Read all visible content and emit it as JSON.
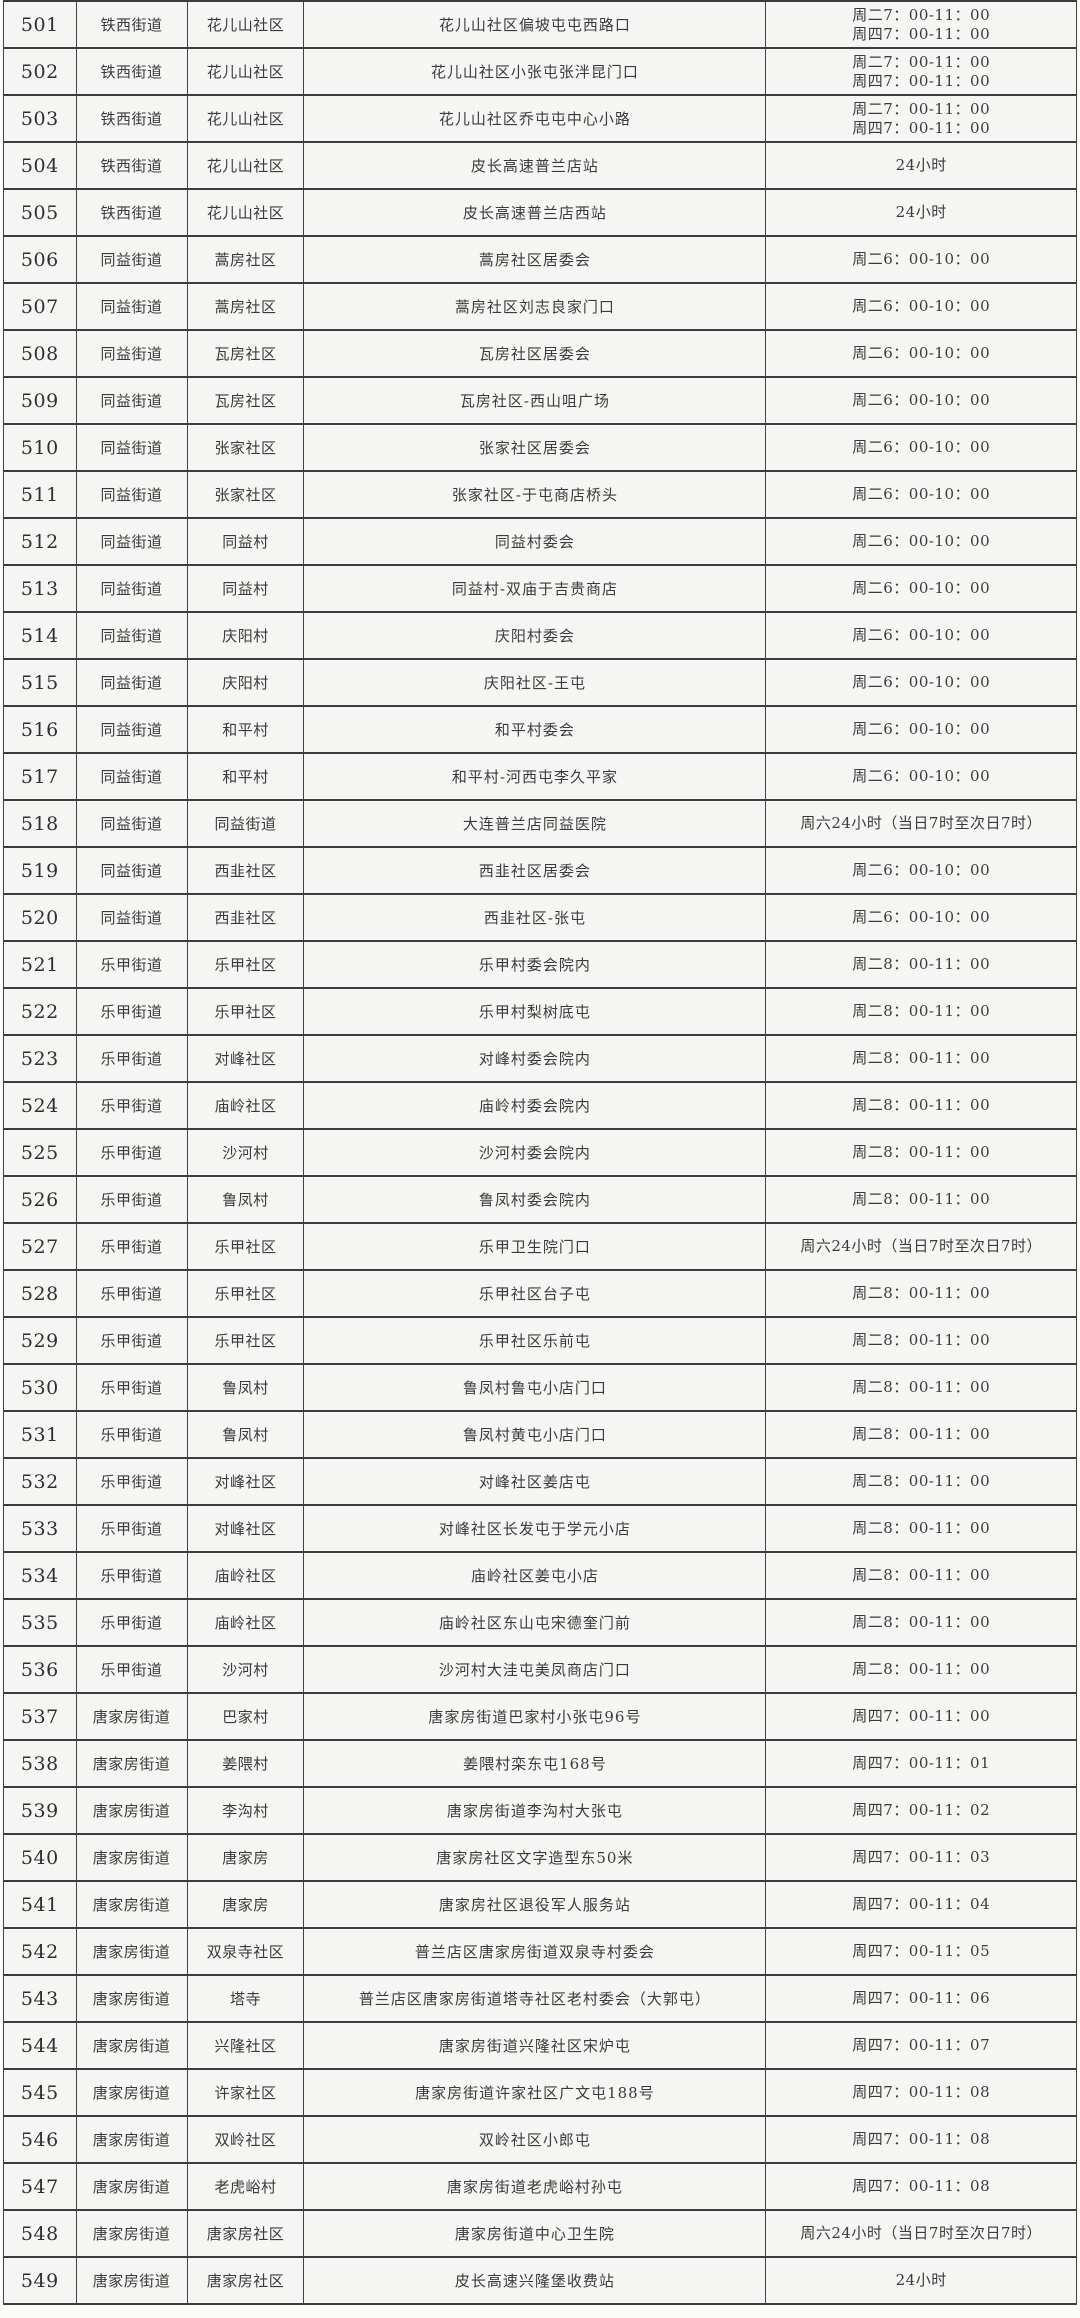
{
  "table": {
    "rows": [
      {
        "no": "501",
        "street": "铁西街道",
        "community": "花儿山社区",
        "location": "花儿山社区偏坡屯屯西路口",
        "time": [
          "周二7：00-11：00",
          "周四7：00-11：00"
        ]
      },
      {
        "no": "502",
        "street": "铁西街道",
        "community": "花儿山社区",
        "location": "花儿山社区小张屯张泮昆门口",
        "time": [
          "周二7：00-11：00",
          "周四7：00-11：00"
        ]
      },
      {
        "no": "503",
        "street": "铁西街道",
        "community": "花儿山社区",
        "location": "花儿山社区乔屯屯中心小路",
        "time": [
          "周二7：00-11：00",
          "周四7：00-11：00"
        ]
      },
      {
        "no": "504",
        "street": "铁西街道",
        "community": "花儿山社区",
        "location": "皮长高速普兰店站",
        "time": [
          "24小时"
        ]
      },
      {
        "no": "505",
        "street": "铁西街道",
        "community": "花儿山社区",
        "location": "皮长高速普兰店西站",
        "time": [
          "24小时"
        ]
      },
      {
        "no": "506",
        "street": "同益街道",
        "community": "蒿房社区",
        "location": "蒿房社区居委会",
        "time": [
          "周二6：00-10：00"
        ]
      },
      {
        "no": "507",
        "street": "同益街道",
        "community": "蒿房社区",
        "location": "蒿房社区刘志良家门口",
        "time": [
          "周二6：00-10：00"
        ]
      },
      {
        "no": "508",
        "street": "同益街道",
        "community": "瓦房社区",
        "location": "瓦房社区居委会",
        "time": [
          "周二6：00-10：00"
        ]
      },
      {
        "no": "509",
        "street": "同益街道",
        "community": "瓦房社区",
        "location": "瓦房社区-西山咀广场",
        "time": [
          "周二6：00-10：00"
        ]
      },
      {
        "no": "510",
        "street": "同益街道",
        "community": "张家社区",
        "location": "张家社区居委会",
        "time": [
          "周二6：00-10：00"
        ]
      },
      {
        "no": "511",
        "street": "同益街道",
        "community": "张家社区",
        "location": "张家社区-于屯商店桥头",
        "time": [
          "周二6：00-10：00"
        ]
      },
      {
        "no": "512",
        "street": "同益街道",
        "community": "同益村",
        "location": "同益村委会",
        "time": [
          "周二6：00-10：00"
        ]
      },
      {
        "no": "513",
        "street": "同益街道",
        "community": "同益村",
        "location": "同益村-双庙于吉贵商店",
        "time": [
          "周二6：00-10：00"
        ]
      },
      {
        "no": "514",
        "street": "同益街道",
        "community": "庆阳村",
        "location": "庆阳村委会",
        "time": [
          "周二6：00-10：00"
        ]
      },
      {
        "no": "515",
        "street": "同益街道",
        "community": "庆阳村",
        "location": "庆阳社区-王屯",
        "time": [
          "周二6：00-10：00"
        ]
      },
      {
        "no": "516",
        "street": "同益街道",
        "community": "和平村",
        "location": "和平村委会",
        "time": [
          "周二6：00-10：00"
        ]
      },
      {
        "no": "517",
        "street": "同益街道",
        "community": "和平村",
        "location": "和平村-河西屯李久平家",
        "time": [
          "周二6：00-10：00"
        ]
      },
      {
        "no": "518",
        "street": "同益街道",
        "community": "同益街道",
        "location": "大连普兰店同益医院",
        "time": [
          "周六24小时（当日7时至次日7时）"
        ]
      },
      {
        "no": "519",
        "street": "同益街道",
        "community": "西韭社区",
        "location": "西韭社区居委会",
        "time": [
          "周二6：00-10：00"
        ]
      },
      {
        "no": "520",
        "street": "同益街道",
        "community": "西韭社区",
        "location": "西韭社区-张屯",
        "time": [
          "周二6：00-10：00"
        ]
      },
      {
        "no": "521",
        "street": "乐甲街道",
        "community": "乐甲社区",
        "location": "乐甲村委会院内",
        "time": [
          "周二8：00-11：00"
        ]
      },
      {
        "no": "522",
        "street": "乐甲街道",
        "community": "乐甲社区",
        "location": "乐甲村梨树底屯",
        "time": [
          "周二8：00-11：00"
        ]
      },
      {
        "no": "523",
        "street": "乐甲街道",
        "community": "对峰社区",
        "location": "对峰村委会院内",
        "time": [
          "周二8：00-11：00"
        ]
      },
      {
        "no": "524",
        "street": "乐甲街道",
        "community": "庙岭社区",
        "location": "庙岭村委会院内",
        "time": [
          "周二8：00-11：00"
        ]
      },
      {
        "no": "525",
        "street": "乐甲街道",
        "community": "沙河村",
        "location": "沙河村委会院内",
        "time": [
          "周二8：00-11：00"
        ]
      },
      {
        "no": "526",
        "street": "乐甲街道",
        "community": "鲁凤村",
        "location": "鲁凤村委会院内",
        "time": [
          "周二8：00-11：00"
        ]
      },
      {
        "no": "527",
        "street": "乐甲街道",
        "community": "乐甲社区",
        "location": "乐甲卫生院门口",
        "time": [
          "周六24小时（当日7时至次日7时）"
        ]
      },
      {
        "no": "528",
        "street": "乐甲街道",
        "community": "乐甲社区",
        "location": "乐甲社区台子屯",
        "time": [
          "周二8：00-11：00"
        ]
      },
      {
        "no": "529",
        "street": "乐甲街道",
        "community": "乐甲社区",
        "location": "乐甲社区乐前屯",
        "time": [
          "周二8：00-11：00"
        ]
      },
      {
        "no": "530",
        "street": "乐甲街道",
        "community": "鲁凤村",
        "location": "鲁凤村鲁屯小店门口",
        "time": [
          "周二8：00-11：00"
        ]
      },
      {
        "no": "531",
        "street": "乐甲街道",
        "community": "鲁凤村",
        "location": "鲁凤村黄屯小店门口",
        "time": [
          "周二8：00-11：00"
        ]
      },
      {
        "no": "532",
        "street": "乐甲街道",
        "community": "对峰社区",
        "location": "对峰社区姜店屯",
        "time": [
          "周二8：00-11：00"
        ]
      },
      {
        "no": "533",
        "street": "乐甲街道",
        "community": "对峰社区",
        "location": "对峰社区长发屯于学元小店",
        "time": [
          "周二8：00-11：00"
        ]
      },
      {
        "no": "534",
        "street": "乐甲街道",
        "community": "庙岭社区",
        "location": "庙岭社区姜屯小店",
        "time": [
          "周二8：00-11：00"
        ]
      },
      {
        "no": "535",
        "street": "乐甲街道",
        "community": "庙岭社区",
        "location": "庙岭社区东山屯宋德奎门前",
        "time": [
          "周二8：00-11：00"
        ]
      },
      {
        "no": "536",
        "street": "乐甲街道",
        "community": "沙河村",
        "location": "沙河村大洼屯美凤商店门口",
        "time": [
          "周二8：00-11：00"
        ]
      },
      {
        "no": "537",
        "street": "唐家房街道",
        "community": "巴家村",
        "location": "唐家房街道巴家村小张屯96号",
        "time": [
          "周四7：00-11：00"
        ]
      },
      {
        "no": "538",
        "street": "唐家房街道",
        "community": "姜隈村",
        "location": "姜隈村栾东屯168号",
        "time": [
          "周四7：00-11：01"
        ]
      },
      {
        "no": "539",
        "street": "唐家房街道",
        "community": "李沟村",
        "location": "唐家房街道李沟村大张屯",
        "time": [
          "周四7：00-11：02"
        ]
      },
      {
        "no": "540",
        "street": "唐家房街道",
        "community": "唐家房",
        "location": "唐家房社区文字造型东50米",
        "time": [
          "周四7：00-11：03"
        ]
      },
      {
        "no": "541",
        "street": "唐家房街道",
        "community": "唐家房",
        "location": "唐家房社区退役军人服务站",
        "time": [
          "周四7：00-11：04"
        ]
      },
      {
        "no": "542",
        "street": "唐家房街道",
        "community": "双泉寺社区",
        "location": "普兰店区唐家房街道双泉寺村委会",
        "time": [
          "周四7：00-11：05"
        ]
      },
      {
        "no": "543",
        "street": "唐家房街道",
        "community": "塔寺",
        "location": "普兰店区唐家房街道塔寺社区老村委会（大郭屯）",
        "time": [
          "周四7：00-11：06"
        ]
      },
      {
        "no": "544",
        "street": "唐家房街道",
        "community": "兴隆社区",
        "location": "唐家房街道兴隆社区宋炉屯",
        "time": [
          "周四7：00-11：07"
        ]
      },
      {
        "no": "545",
        "street": "唐家房街道",
        "community": "许家社区",
        "location": "唐家房街道许家社区广文屯188号",
        "time": [
          "周四7：00-11：08"
        ]
      },
      {
        "no": "546",
        "street": "唐家房街道",
        "community": "双岭社区",
        "location": "双岭社区小郎屯",
        "time": [
          "周四7：00-11：08"
        ]
      },
      {
        "no": "547",
        "street": "唐家房街道",
        "community": "老虎峪村",
        "location": "唐家房街道老虎峪村孙屯",
        "time": [
          "周四7：00-11：08"
        ]
      },
      {
        "no": "548",
        "street": "唐家房街道",
        "community": "唐家房社区",
        "location": "唐家房街道中心卫生院",
        "time": [
          "周六24小时（当日7时至次日7时）"
        ]
      },
      {
        "no": "549",
        "street": "唐家房街道",
        "community": "唐家房社区",
        "location": "皮长高速兴隆堡收费站",
        "time": [
          "24小时"
        ]
      }
    ]
  }
}
